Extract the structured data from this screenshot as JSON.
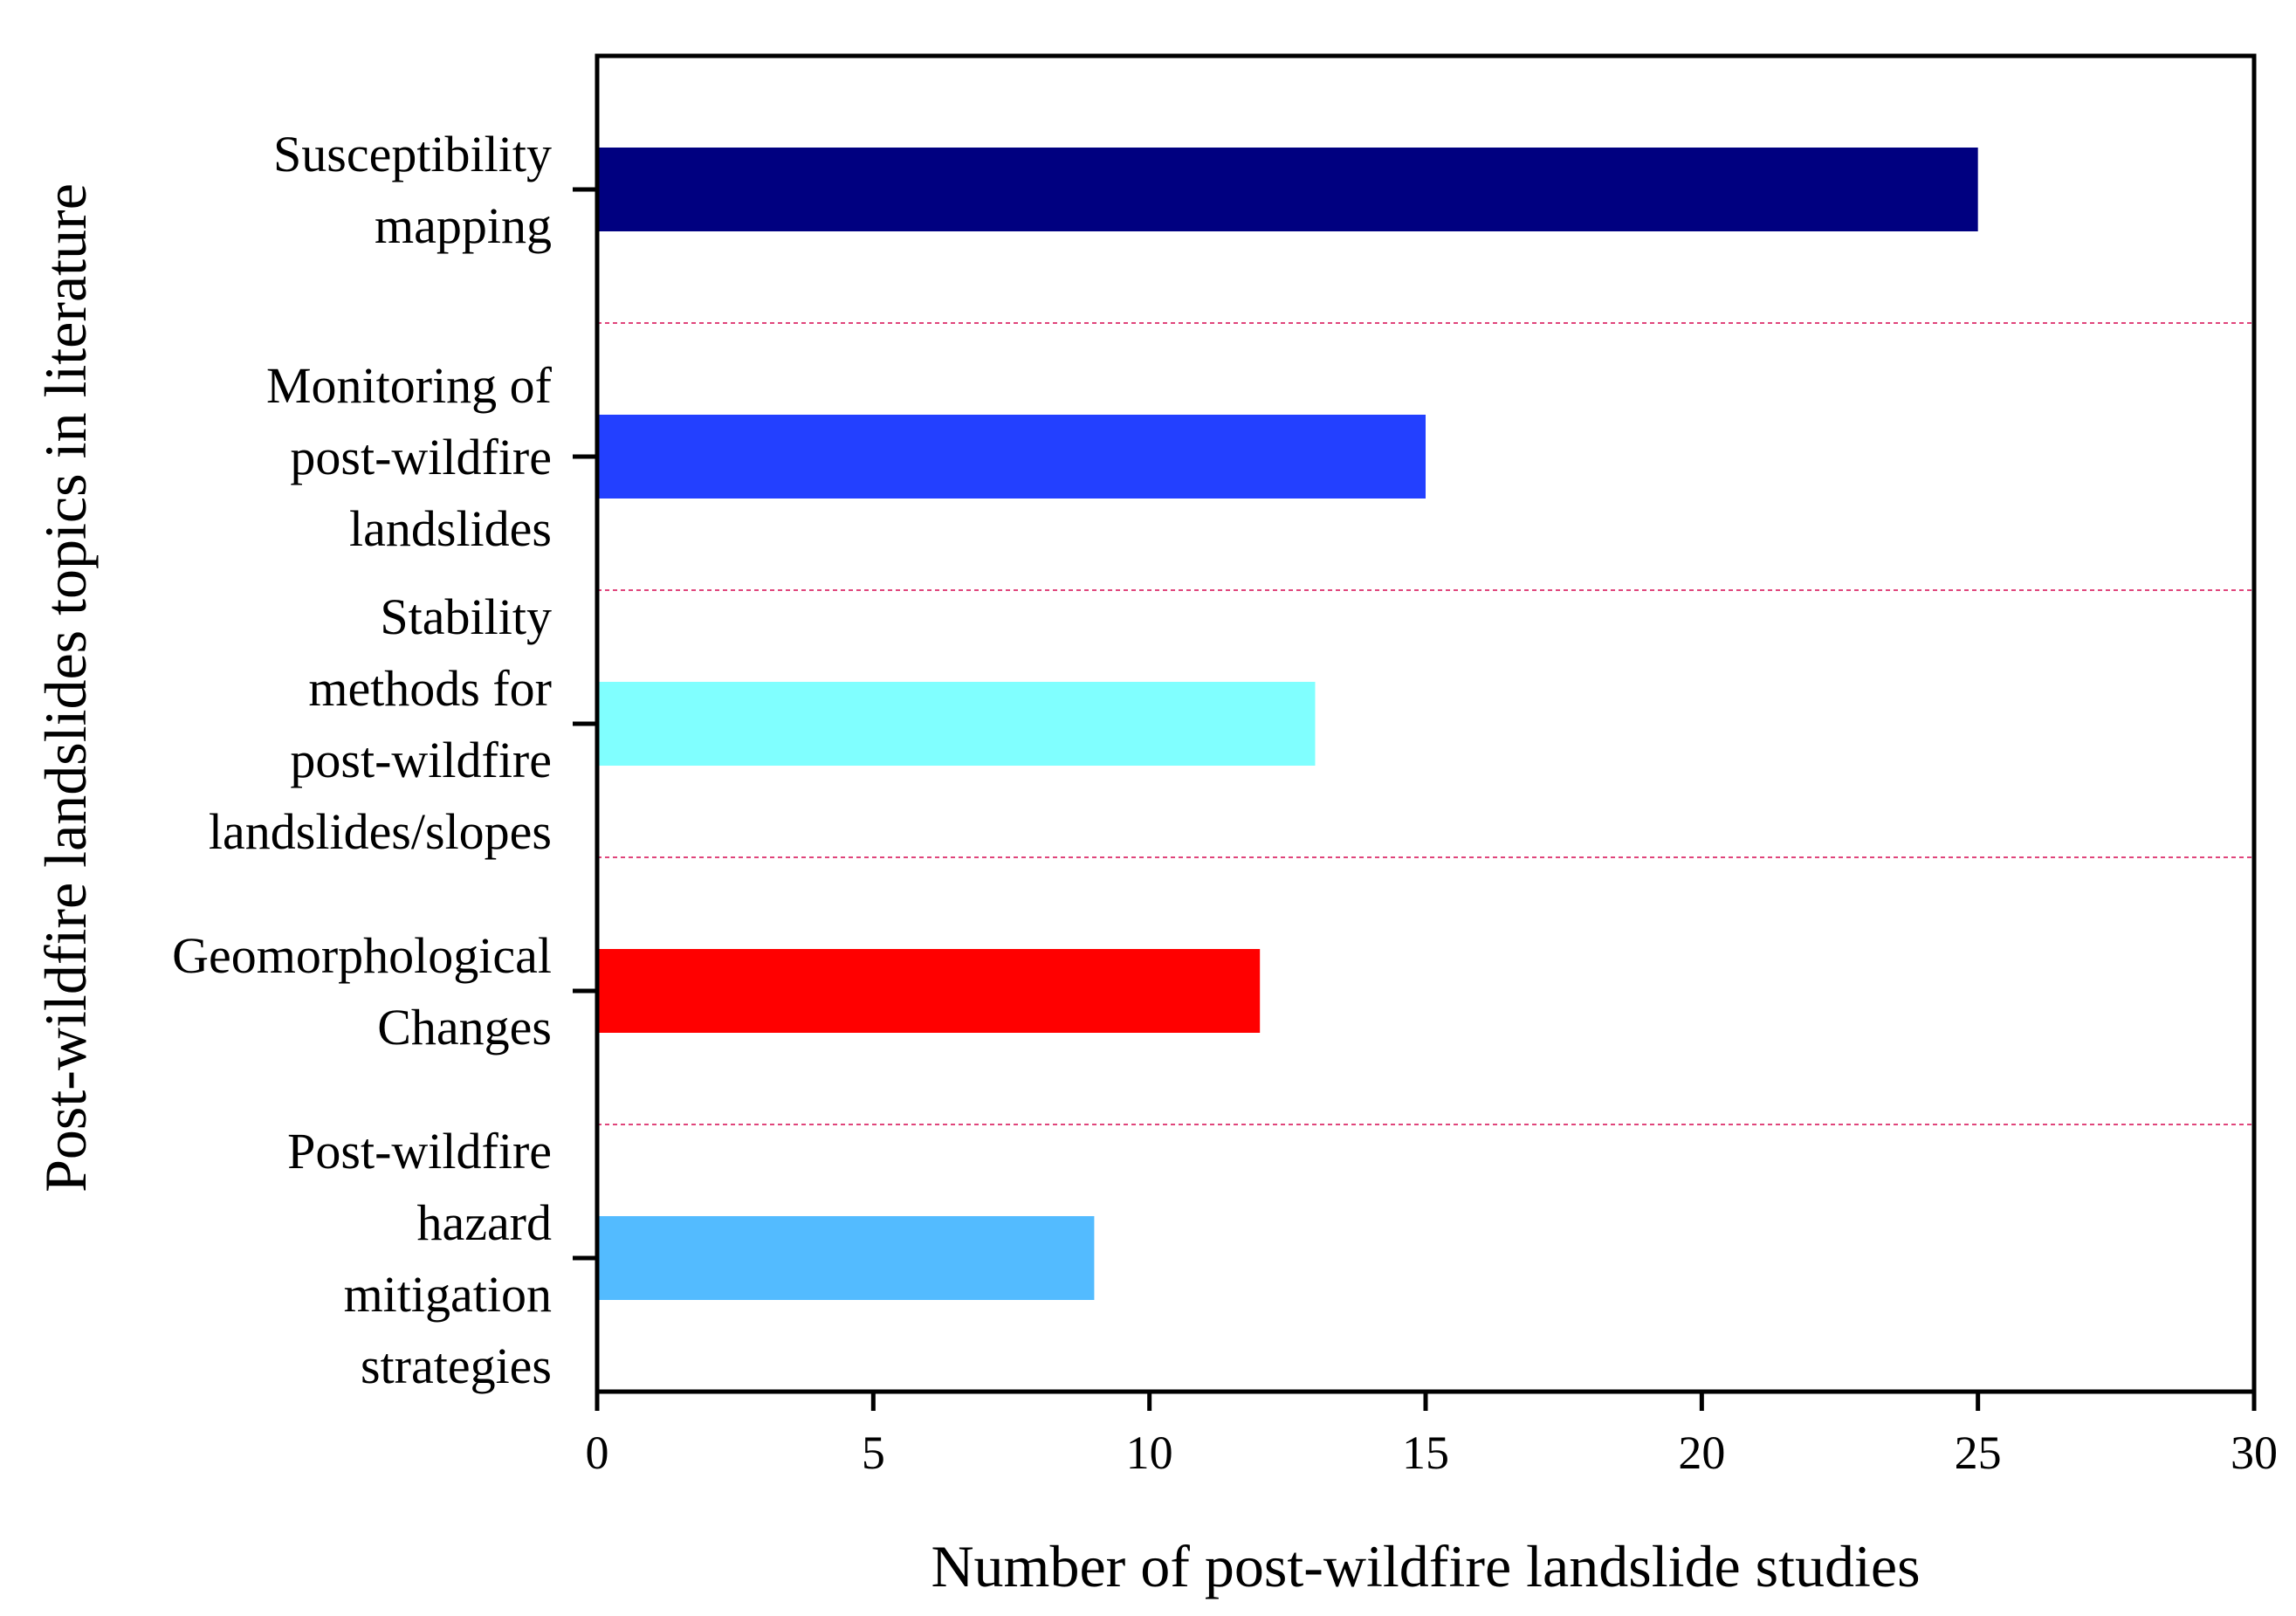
{
  "chart_data": {
    "type": "bar",
    "orientation": "horizontal",
    "categories": [
      [
        "Susceptibility",
        "mapping"
      ],
      [
        "Monitoring of",
        "post-wildfire",
        "landslides"
      ],
      [
        "Stability",
        "methods for",
        "post-wildfire",
        "landslides/slopes"
      ],
      [
        "Geomorphological",
        "Changes"
      ],
      [
        "Post-wildfire",
        "hazard",
        "mitigation",
        "strategies"
      ]
    ],
    "values": [
      25,
      15,
      13,
      12,
      9
    ],
    "colors": [
      "#000080",
      "#2340FF",
      "#80FFFF",
      "#FF0000",
      "#53BBFF"
    ],
    "xlabel": "Number of post-wildfire landslide studies",
    "ylabel": "Post-wildfire landslides topics in literature",
    "xlim": [
      0,
      30
    ],
    "xticks": [
      0,
      5,
      10,
      15,
      20,
      25,
      30
    ],
    "separator_color": "#E0457B",
    "grid": false,
    "legend": "none"
  }
}
